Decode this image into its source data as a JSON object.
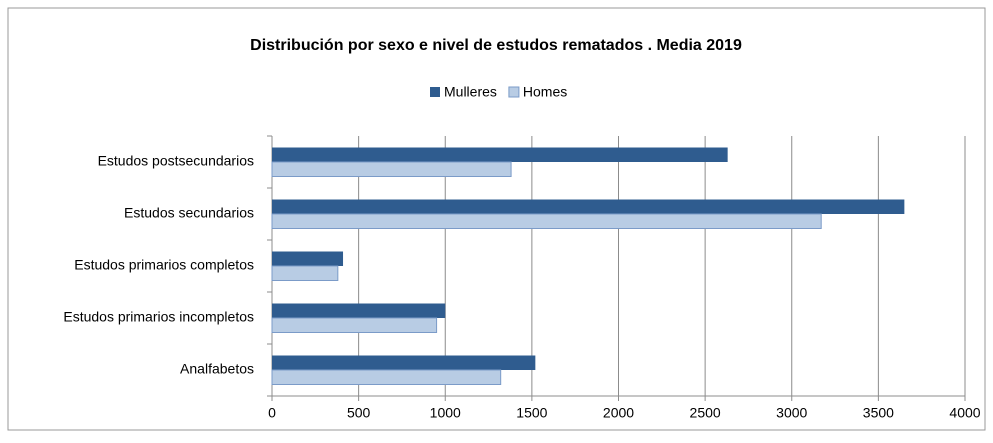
{
  "chart_data": {
    "type": "barh",
    "title": "Distribución  por sexo e nivel de estudos rematados . Media 2019",
    "categories": [
      "Estudos postsecundarios",
      "Estudos secundarios",
      "Estudos primarios completos",
      "Estudos primarios incompletos",
      "Analfabetos"
    ],
    "series": [
      {
        "name": "Mulleres",
        "color": "#2f5c8f",
        "values": [
          2630,
          3650,
          410,
          1000,
          1520
        ]
      },
      {
        "name": "Homes",
        "color": "#b8cce4",
        "values": [
          1380,
          3170,
          380,
          950,
          1320
        ]
      }
    ],
    "xlim": [
      0,
      4000
    ],
    "xticks": [
      0,
      500,
      1000,
      1500,
      2000,
      2500,
      3000,
      3500,
      4000
    ],
    "grid": true,
    "legend": "top"
  }
}
